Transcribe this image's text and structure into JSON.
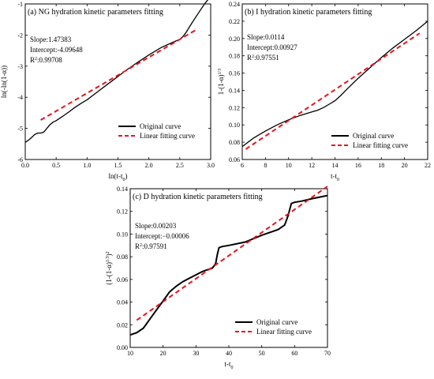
{
  "chart_data": [
    {
      "id": "a",
      "type": "line",
      "title": "(a) NG hydration kinetic parameters fitting",
      "xlabel_main": "ln(t-t",
      "xlabel_sub": "0",
      "xlabel_end": ")",
      "ylabel": "ln(-ln(1-α))",
      "xlim": [
        0.0,
        3.0
      ],
      "ylim": [
        -6,
        -1
      ],
      "xticks": [
        "0.0",
        "0.5",
        "1.0",
        "1.5",
        "2.0",
        "2.5",
        "3.0"
      ],
      "yticks": [
        "-6",
        "-5",
        "-4",
        "-3",
        "-2",
        "-1"
      ],
      "annotations": [
        "Slope:1.47383",
        "Intercept:-4.09648",
        "R²:0.99708"
      ],
      "legend": [
        "Original curve",
        "Linear fitting curve"
      ],
      "legend_position": "bottom-right",
      "series": [
        {
          "name": "Original curve",
          "style": "solid",
          "color": "#000000",
          "x": [
            0.0,
            0.05,
            0.1,
            0.15,
            0.2,
            0.25,
            0.3,
            0.35,
            0.4,
            0.45,
            0.5,
            0.6,
            0.7,
            0.8,
            0.9,
            1.0,
            1.2,
            1.4,
            1.6,
            1.8,
            2.0,
            2.2,
            2.4,
            2.5,
            2.55,
            2.6,
            2.7,
            2.8,
            2.9,
            3.0
          ],
          "y": [
            -5.45,
            -5.38,
            -5.3,
            -5.2,
            -5.15,
            -5.15,
            -5.12,
            -5.0,
            -4.88,
            -4.8,
            -4.75,
            -4.62,
            -4.48,
            -4.33,
            -4.2,
            -4.08,
            -3.78,
            -3.48,
            -3.18,
            -2.9,
            -2.64,
            -2.4,
            -2.22,
            -2.14,
            -2.05,
            -1.92,
            -1.6,
            -1.3,
            -1.0,
            -0.75
          ]
        },
        {
          "name": "Linear fitting curve",
          "style": "dashed",
          "color": "#e8141b",
          "x": [
            0.25,
            2.75
          ],
          "y": [
            -4.73,
            -1.85
          ]
        }
      ]
    },
    {
      "id": "b",
      "type": "line",
      "title": "(b) I hydration kinetic parameters fitting",
      "xlabel_main": "t-t",
      "xlabel_sub": "0",
      "xlabel_end": "",
      "ylabel": "1-(1-α)^1/3",
      "xlim": [
        6,
        22
      ],
      "ylim": [
        0.06,
        0.24
      ],
      "xticks": [
        "6",
        "8",
        "10",
        "12",
        "14",
        "16",
        "18",
        "20",
        "22"
      ],
      "yticks": [
        "0.06",
        "0.08",
        "0.10",
        "0.12",
        "0.14",
        "0.16",
        "0.18",
        "0.20",
        "0.22",
        "0.24"
      ],
      "annotations": [
        "Slope:0.0114",
        "Intercept:0.00927",
        "R²:0.97551"
      ],
      "legend": [
        "Original curve",
        "Linear fitting curve"
      ],
      "legend_position": "bottom-right",
      "series": [
        {
          "name": "Original curve",
          "style": "solid",
          "color": "#000000",
          "x": [
            6,
            7,
            8,
            9,
            10,
            11,
            12,
            12.5,
            13,
            13.5,
            14,
            14.5,
            15,
            16,
            17,
            18,
            19,
            20,
            21,
            22
          ],
          "y": [
            0.075,
            0.085,
            0.093,
            0.1,
            0.106,
            0.111,
            0.115,
            0.117,
            0.12,
            0.124,
            0.128,
            0.134,
            0.141,
            0.154,
            0.166,
            0.178,
            0.189,
            0.199,
            0.209,
            0.22
          ]
        },
        {
          "name": "Linear fitting curve",
          "style": "dashed",
          "color": "#e8141b",
          "x": [
            6.3,
            21.3
          ],
          "y": [
            0.072,
            0.206
          ]
        }
      ]
    },
    {
      "id": "c",
      "type": "line",
      "title": "(c) D hydration kinetic parameters fitting",
      "xlabel_main": "t-t",
      "xlabel_sub": "0",
      "xlabel_end": "",
      "ylabel": "(1-(1-α)^1/3)^2",
      "xlim": [
        10,
        70
      ],
      "ylim": [
        0.0,
        0.14
      ],
      "xticks": [
        "10",
        "20",
        "30",
        "40",
        "50",
        "60",
        "70"
      ],
      "yticks": [
        "0.00",
        "0.02",
        "0.04",
        "0.06",
        "0.08",
        "0.10",
        "0.12",
        "0.14"
      ],
      "annotations": [
        "Slope:0.00203",
        "Intercept:−0.00006",
        "R²:0.97591"
      ],
      "legend": [
        "Original curve",
        "Linear fitting curve"
      ],
      "legend_position": "bottom-right",
      "series": [
        {
          "name": "Original curve",
          "style": "solid",
          "color": "#000000",
          "x": [
            10,
            12,
            14,
            16,
            18,
            20,
            22,
            24,
            26,
            28,
            30,
            32,
            34,
            35,
            36,
            36.5,
            37,
            38,
            40,
            45,
            50,
            55,
            57,
            58,
            59,
            60,
            62,
            65,
            70
          ],
          "y": [
            0.011,
            0.013,
            0.017,
            0.025,
            0.033,
            0.041,
            0.049,
            0.054,
            0.058,
            0.061,
            0.064,
            0.067,
            0.069,
            0.07,
            0.074,
            0.082,
            0.088,
            0.089,
            0.09,
            0.093,
            0.099,
            0.104,
            0.108,
            0.116,
            0.127,
            0.128,
            0.129,
            0.131,
            0.134
          ]
        },
        {
          "name": "Linear fitting curve",
          "style": "dashed",
          "color": "#e8141b",
          "x": [
            12,
            70
          ],
          "y": [
            0.024,
            0.142
          ]
        }
      ]
    }
  ]
}
